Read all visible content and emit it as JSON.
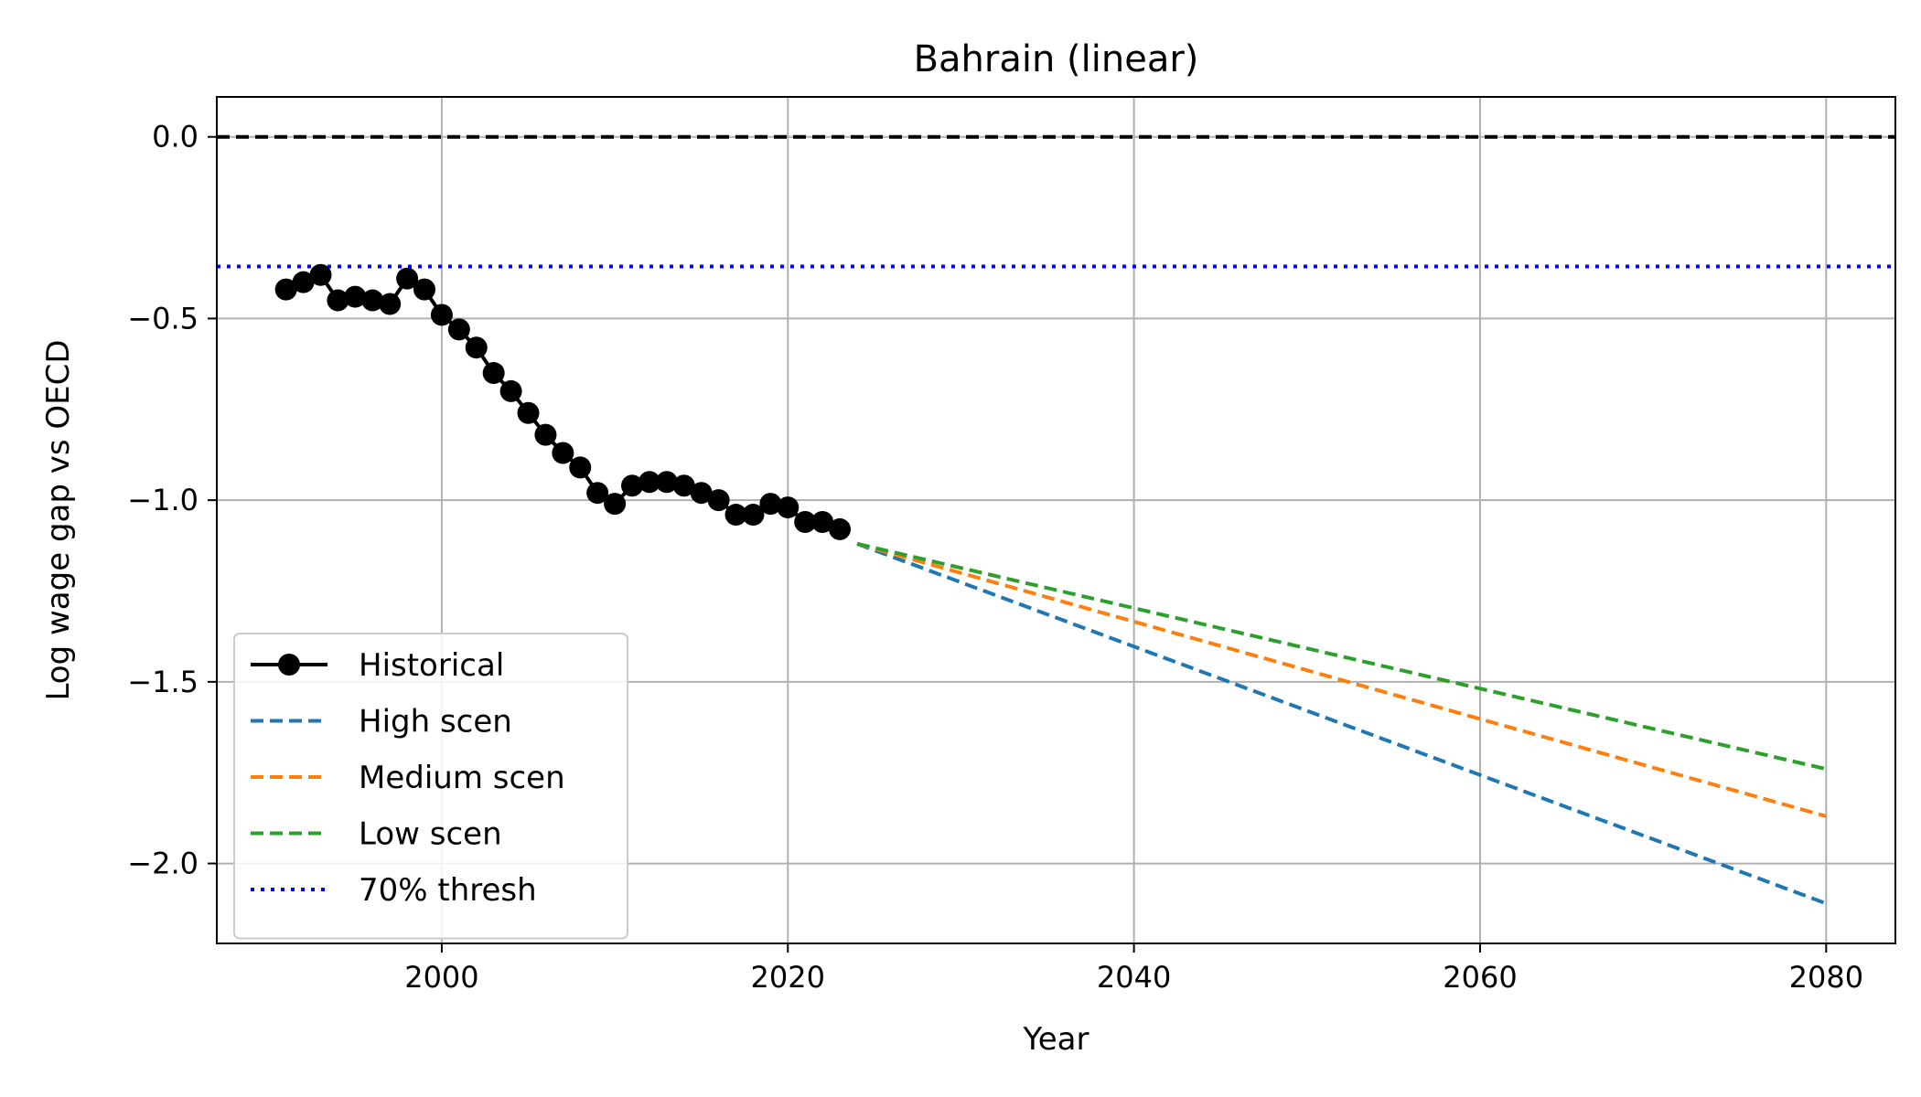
{
  "chart_data": {
    "type": "line",
    "title": "Bahrain (linear)",
    "xlabel": "Year",
    "ylabel": "Log wage gap vs OECD",
    "xlim": [
      1987,
      2084
    ],
    "ylim": [
      -2.22,
      0.11
    ],
    "xticks": [
      2000,
      2020,
      2040,
      2060,
      2080
    ],
    "xtick_labels": [
      "2000",
      "2020",
      "2040",
      "2060",
      "2080"
    ],
    "yticks": [
      0.0,
      -0.5,
      -1.0,
      -1.5,
      -2.0
    ],
    "ytick_labels": [
      "0.0",
      "−0.5",
      "−1.0",
      "−1.5",
      "−2.0"
    ],
    "grid": true,
    "legend_position": "lower-left",
    "series": [
      {
        "name": "Historical",
        "color": "#000000",
        "style": "solid-marker",
        "x": [
          1991,
          1992,
          1993,
          1994,
          1995,
          1996,
          1997,
          1998,
          1999,
          2000,
          2001,
          2002,
          2003,
          2004,
          2005,
          2006,
          2007,
          2008,
          2009,
          2010,
          2011,
          2012,
          2013,
          2014,
          2015,
          2016,
          2017,
          2018,
          2019,
          2020,
          2021,
          2022,
          2023
        ],
        "y": [
          -0.42,
          -0.4,
          -0.38,
          -0.45,
          -0.44,
          -0.45,
          -0.46,
          -0.39,
          -0.42,
          -0.49,
          -0.53,
          -0.58,
          -0.65,
          -0.7,
          -0.76,
          -0.82,
          -0.87,
          -0.91,
          -0.98,
          -1.01,
          -0.96,
          -0.95,
          -0.95,
          -0.96,
          -0.98,
          -1.0,
          -1.04,
          -1.04,
          -1.01,
          -1.02,
          -1.06,
          -1.06,
          -1.08
        ]
      },
      {
        "name": "High scen",
        "color": "#1f77b4",
        "style": "dashed",
        "x": [
          2024,
          2080
        ],
        "y": [
          -1.12,
          -2.11
        ]
      },
      {
        "name": "Medium scen",
        "color": "#ff7f0e",
        "style": "dashed",
        "x": [
          2024,
          2080
        ],
        "y": [
          -1.12,
          -1.87
        ]
      },
      {
        "name": "Low scen",
        "color": "#2ca02c",
        "style": "dashed",
        "x": [
          2024,
          2080
        ],
        "y": [
          -1.12,
          -1.74
        ]
      }
    ],
    "reference_lines": [
      {
        "name": "",
        "y": 0.0,
        "color": "#000000",
        "style": "dashed"
      },
      {
        "name": "70% thresh",
        "y": -0.3567,
        "color": "#0000ff",
        "style": "dotted"
      }
    ]
  }
}
